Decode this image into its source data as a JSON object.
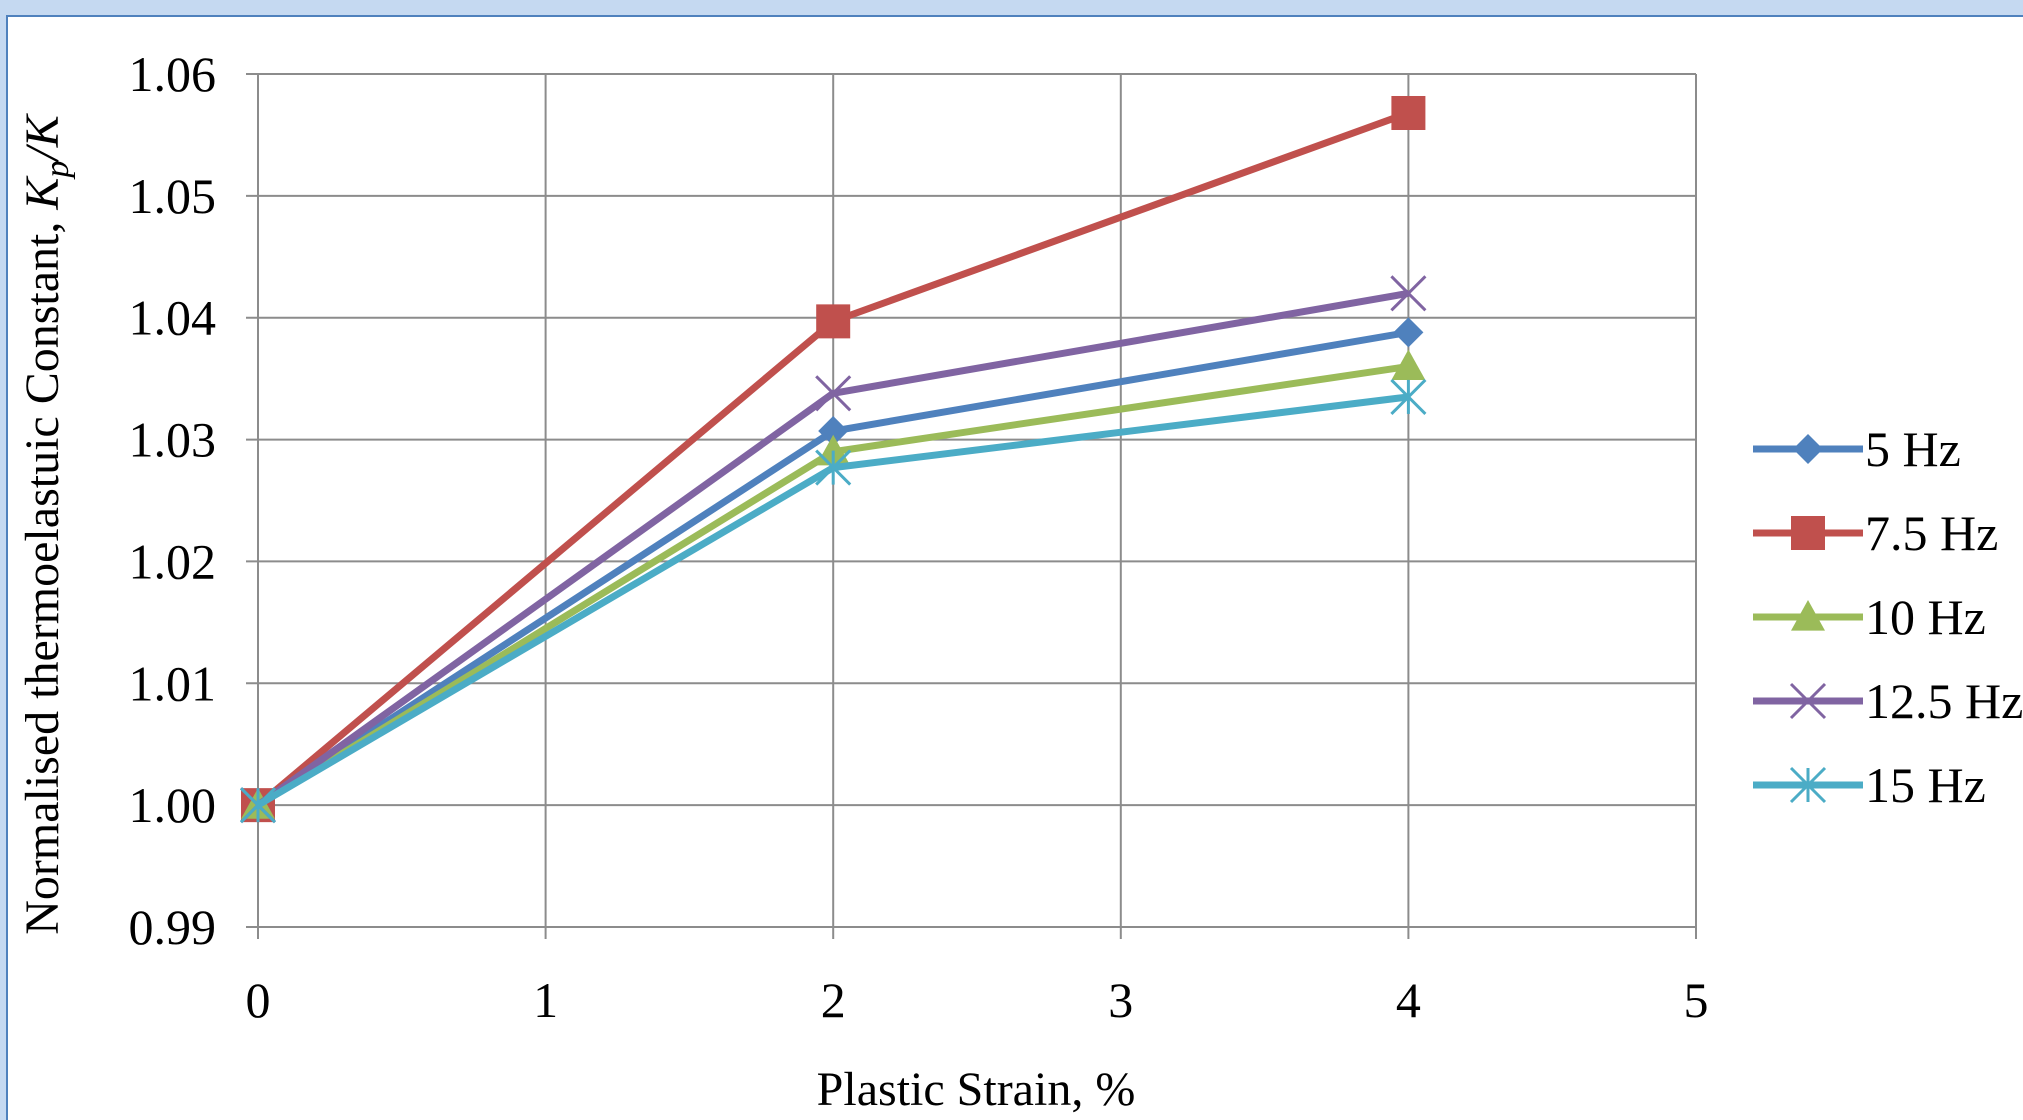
{
  "chart_data": {
    "type": "line",
    "xlabel": "Plastic Strain, %",
    "ylabel_main": "Normalised thermoelastuic Constant, ",
    "ylabel_k": "K",
    "ylabel_sub": "p",
    "ylabel_tail": "/K",
    "xlim": [
      0,
      5
    ],
    "ylim": [
      0.99,
      1.06
    ],
    "x_ticks": [
      "0",
      "1",
      "2",
      "3",
      "4",
      "5"
    ],
    "y_ticks": [
      "0.99",
      "1.00",
      "1.01",
      "1.02",
      "1.03",
      "1.04",
      "1.05",
      "1.06"
    ],
    "grid": true,
    "legend_position": "right",
    "x": [
      0,
      2,
      4
    ],
    "series": [
      {
        "name": "5 Hz",
        "values": [
          1.0,
          1.0307,
          1.0388
        ],
        "color": "#4f81bd",
        "marker": "diamond"
      },
      {
        "name": "7.5 Hz",
        "values": [
          1.0,
          1.0397,
          1.0568
        ],
        "color": "#c0504d",
        "marker": "square"
      },
      {
        "name": "10 Hz",
        "values": [
          1.0,
          1.029,
          1.036
        ],
        "color": "#9bbb59",
        "marker": "triangle"
      },
      {
        "name": "12.5 Hz",
        "values": [
          1.0,
          1.0338,
          1.042
        ],
        "color": "#8064a2",
        "marker": "x"
      },
      {
        "name": "15 Hz",
        "values": [
          1.0,
          1.0277,
          1.0335
        ],
        "color": "#4bacc6",
        "marker": "star"
      }
    ]
  }
}
